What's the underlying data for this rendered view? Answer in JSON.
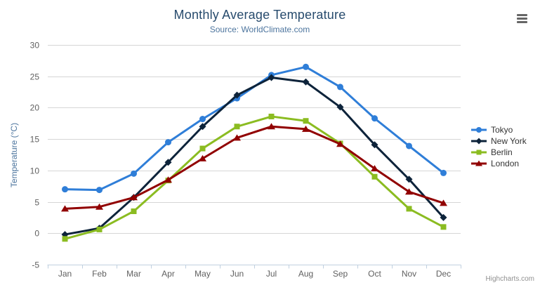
{
  "chart": {
    "context_menu_icon": "hamburger-icon"
  },
  "credits": {
    "label": "Highcharts.com"
  },
  "chart_data": {
    "type": "line",
    "title": "Monthly Average Temperature",
    "subtitle": "Source: WorldClimate.com",
    "categories": [
      "Jan",
      "Feb",
      "Mar",
      "Apr",
      "May",
      "Jun",
      "Jul",
      "Aug",
      "Sep",
      "Oct",
      "Nov",
      "Dec"
    ],
    "series": [
      {
        "name": "Tokyo",
        "color": "#2f7ed8",
        "marker": "circle",
        "values": [
          7.0,
          6.9,
          9.5,
          14.5,
          18.2,
          21.5,
          25.2,
          26.5,
          23.3,
          18.3,
          13.9,
          9.6
        ]
      },
      {
        "name": "New York",
        "color": "#0d233a",
        "marker": "diamond",
        "values": [
          -0.2,
          0.8,
          5.7,
          11.3,
          17.0,
          22.0,
          24.8,
          24.1,
          20.1,
          14.1,
          8.6,
          2.5
        ]
      },
      {
        "name": "Berlin",
        "color": "#8bbc21",
        "marker": "square",
        "values": [
          -0.9,
          0.6,
          3.5,
          8.4,
          13.5,
          17.0,
          18.6,
          17.9,
          14.3,
          9.0,
          3.9,
          1.0
        ]
      },
      {
        "name": "London",
        "color": "#910000",
        "marker": "triangle",
        "values": [
          3.9,
          4.2,
          5.7,
          8.5,
          11.9,
          15.2,
          17.0,
          16.6,
          14.2,
          10.3,
          6.6,
          4.8
        ]
      }
    ],
    "xlabel": "",
    "ylabel": "Temperature (°C)",
    "ylim": [
      -5,
      30
    ],
    "ytick_interval": 5,
    "grid": true,
    "legend_position": "right",
    "styles": {
      "title_color": "#274b6d",
      "subtitle_color": "#4d759e",
      "axis_title_color": "#4d759e",
      "axis_label_color": "#606060",
      "grid_color": "#d6d6d6",
      "axis_line_color": "#c0d0e0",
      "legend_text_color": "#333333",
      "credits_color": "#909090"
    }
  }
}
